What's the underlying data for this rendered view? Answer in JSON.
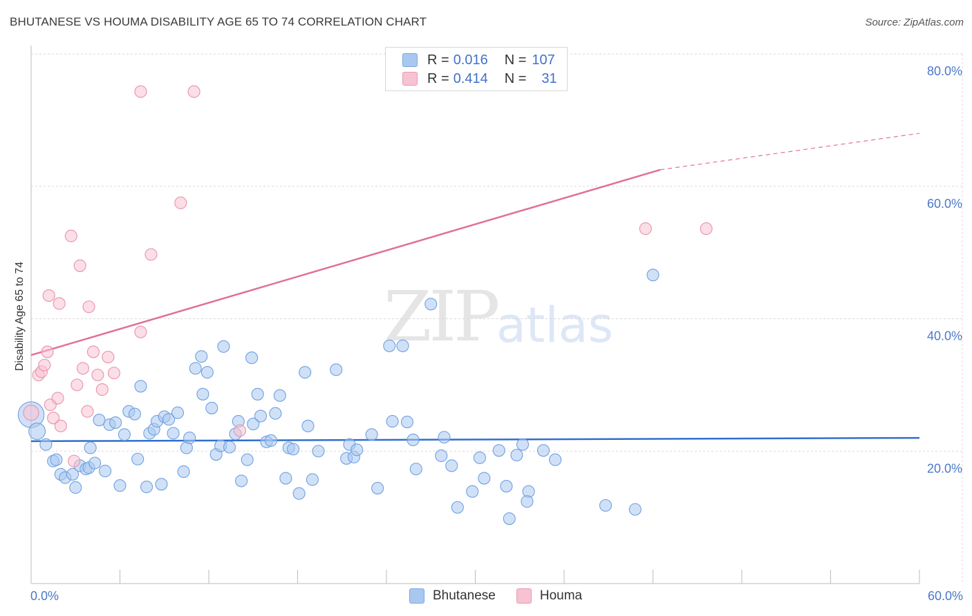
{
  "header": {
    "title": "BHUTANESE VS HOUMA DISABILITY AGE 65 TO 74 CORRELATION CHART",
    "source": "Source: ZipAtlas.com"
  },
  "watermark": {
    "zip": "ZIP",
    "atlas": "atlas"
  },
  "legend": {
    "r_label": "R = ",
    "n_label": "N = ",
    "rows": [
      {
        "name": "Bhutanese",
        "r": "0.016",
        "n": "107",
        "color": "#a9c8f0"
      },
      {
        "name": "Houma",
        "r": "0.414",
        "n": "31",
        "color": "#f7bccc"
      }
    ]
  },
  "colors": {
    "blue_fill": "#a9c8f0",
    "blue_stroke": "#6f9fe0",
    "blue_line": "#2f6fcc",
    "pink_fill": "#f7c2d1",
    "pink_stroke": "#e892ad",
    "pink_line": "#e07095",
    "grid": "#d9d9d9",
    "tick_text": "#4a78c8"
  },
  "chart_data": {
    "type": "scatter",
    "title": "BHUTANESE VS HOUMA DISABILITY AGE 65 TO 74 CORRELATION CHART",
    "xlabel": "",
    "ylabel": "Disability Age 65 to 74",
    "xlim": [
      0,
      60
    ],
    "ylim": [
      0,
      80
    ],
    "x_ticks": [
      "0.0%",
      "60.0%"
    ],
    "y_ticks": [
      {
        "value": 20,
        "label": "20.0%"
      },
      {
        "value": 40,
        "label": "40.0%"
      },
      {
        "value": 60,
        "label": "60.0%"
      },
      {
        "value": 80,
        "label": "80.0%"
      }
    ],
    "series": [
      {
        "name": "Bhutanese",
        "r": 0.016,
        "n": 107,
        "trend": {
          "x0": 0,
          "y0": 21.5,
          "x1": 60,
          "y1": 22.0
        },
        "points": [
          [
            0.0,
            25.5,
            2.2
          ],
          [
            0.4,
            23.0,
            1.4
          ],
          [
            1.0,
            21.0,
            1
          ],
          [
            1.5,
            18.5,
            1
          ],
          [
            1.7,
            18.7,
            1
          ],
          [
            2.0,
            16.5,
            1
          ],
          [
            2.3,
            16.0,
            1
          ],
          [
            2.8,
            16.5,
            1
          ],
          [
            3.0,
            14.5,
            1
          ],
          [
            3.3,
            17.8,
            1
          ],
          [
            3.7,
            17.3,
            1
          ],
          [
            3.9,
            17.5,
            1
          ],
          [
            4.0,
            20.5,
            1
          ],
          [
            4.3,
            18.2,
            1
          ],
          [
            4.6,
            24.7,
            1
          ],
          [
            5.0,
            17.0,
            1
          ],
          [
            5.3,
            24.0,
            1
          ],
          [
            5.7,
            24.3,
            1
          ],
          [
            6.0,
            14.8,
            1
          ],
          [
            6.3,
            22.5,
            1
          ],
          [
            6.6,
            26.0,
            1
          ],
          [
            7.0,
            25.6,
            1
          ],
          [
            7.2,
            18.8,
            1
          ],
          [
            7.4,
            29.8,
            1
          ],
          [
            7.8,
            14.6,
            1
          ],
          [
            8.0,
            22.7,
            1
          ],
          [
            8.3,
            23.3,
            1
          ],
          [
            8.5,
            24.5,
            1
          ],
          [
            8.8,
            15.0,
            1
          ],
          [
            9.0,
            25.2,
            1
          ],
          [
            9.3,
            24.8,
            1
          ],
          [
            9.6,
            22.7,
            1
          ],
          [
            9.9,
            25.8,
            1
          ],
          [
            10.3,
            16.9,
            1
          ],
          [
            10.5,
            20.5,
            1
          ],
          [
            10.7,
            22.0,
            1
          ],
          [
            11.1,
            32.5,
            1
          ],
          [
            11.5,
            34.3,
            1
          ],
          [
            11.6,
            28.6,
            1
          ],
          [
            11.9,
            31.9,
            1
          ],
          [
            12.2,
            26.5,
            1
          ],
          [
            12.5,
            19.5,
            1
          ],
          [
            12.8,
            20.8,
            1
          ],
          [
            13.0,
            35.8,
            1
          ],
          [
            13.4,
            20.6,
            1
          ],
          [
            13.8,
            22.6,
            1
          ],
          [
            14.0,
            24.5,
            1
          ],
          [
            14.2,
            15.5,
            1
          ],
          [
            14.6,
            18.7,
            1
          ],
          [
            14.9,
            34.1,
            1
          ],
          [
            15.0,
            24.1,
            1
          ],
          [
            15.3,
            28.6,
            1
          ],
          [
            15.5,
            25.3,
            1
          ],
          [
            15.9,
            21.4,
            1
          ],
          [
            16.2,
            21.6,
            1
          ],
          [
            16.8,
            28.4,
            1
          ],
          [
            16.5,
            25.7,
            1
          ],
          [
            17.2,
            15.9,
            1
          ],
          [
            17.4,
            20.5,
            1
          ],
          [
            17.7,
            20.3,
            1
          ],
          [
            18.1,
            13.6,
            1
          ],
          [
            18.5,
            31.9,
            1
          ],
          [
            18.7,
            23.8,
            1
          ],
          [
            19.0,
            15.7,
            1
          ],
          [
            19.4,
            20.0,
            1
          ],
          [
            20.6,
            32.3,
            1
          ],
          [
            21.3,
            18.9,
            1
          ],
          [
            21.5,
            21.0,
            1
          ],
          [
            21.8,
            19.1,
            1
          ],
          [
            22.0,
            20.2,
            1
          ],
          [
            23.0,
            22.5,
            1
          ],
          [
            23.4,
            14.4,
            1
          ],
          [
            24.2,
            35.9,
            1
          ],
          [
            24.4,
            24.5,
            1
          ],
          [
            25.1,
            35.9,
            1
          ],
          [
            25.4,
            24.4,
            1
          ],
          [
            25.8,
            21.7,
            1
          ],
          [
            26.0,
            17.3,
            1
          ],
          [
            27.0,
            42.2,
            1
          ],
          [
            27.9,
            22.1,
            1
          ],
          [
            27.7,
            19.3,
            1
          ],
          [
            28.4,
            17.8,
            1
          ],
          [
            28.8,
            11.5,
            1
          ],
          [
            29.8,
            13.9,
            1
          ],
          [
            30.3,
            19.0,
            1
          ],
          [
            30.6,
            15.9,
            1
          ],
          [
            31.6,
            20.1,
            1
          ],
          [
            32.1,
            14.7,
            1
          ],
          [
            32.3,
            9.8,
            1
          ],
          [
            32.8,
            19.4,
            1
          ],
          [
            33.2,
            21.0,
            1
          ],
          [
            33.6,
            13.9,
            1
          ],
          [
            33.5,
            12.4,
            1
          ],
          [
            34.6,
            20.1,
            1
          ],
          [
            35.4,
            18.7,
            1
          ],
          [
            42.0,
            46.6,
            1
          ],
          [
            40.8,
            11.2,
            1
          ],
          [
            38.8,
            11.8,
            1
          ]
        ]
      },
      {
        "name": "Houma",
        "r": 0.414,
        "n": 31,
        "trend": {
          "x0": 0,
          "y0": 34.5,
          "x1": 42.5,
          "y1": 62.5
        },
        "trend_dashed": {
          "x0": 42.5,
          "y0": 62.5,
          "x1": 60,
          "y1": 68.0
        },
        "points": [
          [
            0.0,
            25.8,
            1.3
          ],
          [
            0.5,
            31.5,
            1
          ],
          [
            0.7,
            32.0,
            1
          ],
          [
            0.9,
            33.0,
            1
          ],
          [
            1.1,
            35.0,
            1
          ],
          [
            1.2,
            43.5,
            1
          ],
          [
            1.3,
            27.0,
            1
          ],
          [
            1.5,
            25.0,
            1
          ],
          [
            1.8,
            28.0,
            1
          ],
          [
            1.9,
            42.3,
            1
          ],
          [
            2.0,
            23.8,
            1
          ],
          [
            2.7,
            52.5,
            1
          ],
          [
            2.9,
            18.5,
            1
          ],
          [
            3.1,
            30.0,
            1
          ],
          [
            3.3,
            48.0,
            1
          ],
          [
            3.5,
            32.5,
            1
          ],
          [
            3.8,
            26.0,
            1
          ],
          [
            3.9,
            41.8,
            1
          ],
          [
            4.2,
            35.0,
            1
          ],
          [
            4.5,
            31.5,
            1
          ],
          [
            4.8,
            29.3,
            1
          ],
          [
            5.2,
            34.2,
            1
          ],
          [
            5.6,
            31.8,
            1
          ],
          [
            7.4,
            38.0,
            1
          ],
          [
            7.4,
            74.3,
            1
          ],
          [
            8.1,
            49.7,
            1
          ],
          [
            10.1,
            57.5,
            1
          ],
          [
            11.0,
            74.3,
            1
          ],
          [
            14.1,
            23.1,
            1
          ],
          [
            41.5,
            53.6,
            1
          ],
          [
            45.6,
            53.6,
            1
          ]
        ]
      }
    ]
  }
}
